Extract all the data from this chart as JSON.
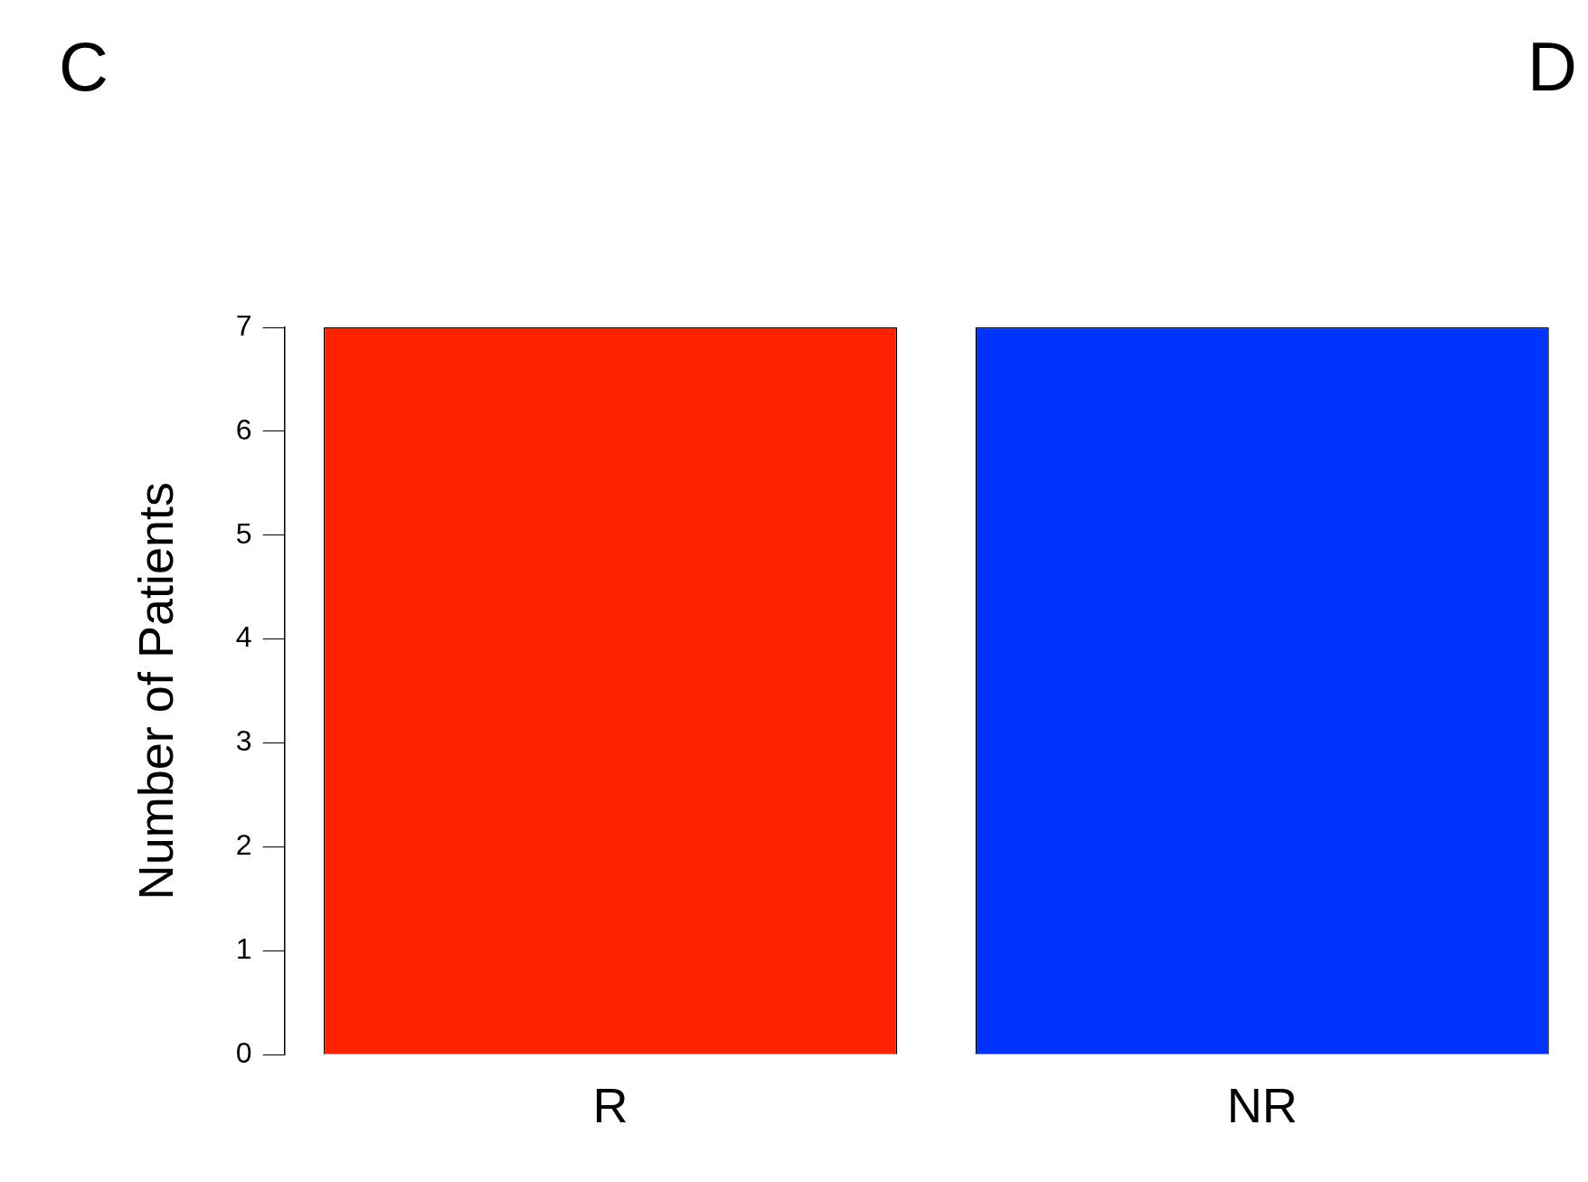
{
  "chart_data": {
    "type": "bar",
    "categories": [
      "R",
      "NR"
    ],
    "values": [
      7,
      7
    ],
    "colors": [
      "#ff2200",
      "#0033ff"
    ],
    "ylabel": "Number of Patients",
    "ylim": [
      0,
      7
    ],
    "yticks": [
      0,
      1,
      2,
      3,
      4,
      5,
      6,
      7
    ],
    "grid": false,
    "legend": false,
    "annotations": [
      "C",
      "D"
    ]
  }
}
